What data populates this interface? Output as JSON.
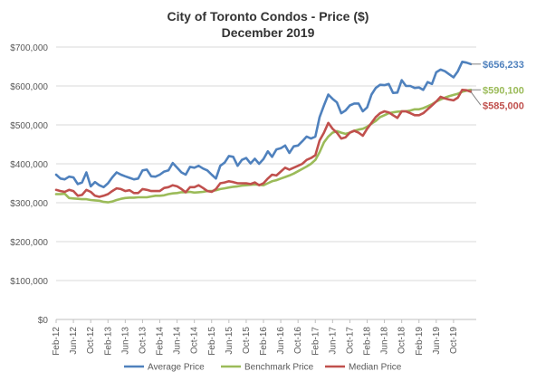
{
  "chart_data": {
    "type": "line",
    "title": "City of Toronto Condos - Price ($)",
    "subtitle": "December 2019",
    "xlabel": "",
    "ylabel": "",
    "ylim": [
      0,
      700000
    ],
    "yticks": [
      0,
      100000,
      200000,
      300000,
      400000,
      500000,
      600000,
      700000
    ],
    "ytick_labels": [
      "$0",
      "$100,000",
      "$200,000",
      "$300,000",
      "$400,000",
      "$500,000",
      "$600,000",
      "$700,000"
    ],
    "grid": "horizontal",
    "legend_position": "bottom",
    "x_start": "Feb-12",
    "x_end": "Dec-19",
    "x_tick_labels": [
      "Feb-12",
      "Jun-12",
      "Oct-12",
      "Feb-13",
      "Jun-13",
      "Oct-13",
      "Feb-14",
      "Jun-14",
      "Oct-14",
      "Feb-15",
      "Jun-15",
      "Oct-15",
      "Feb-16",
      "Jun-16",
      "Oct-16",
      "Feb-17",
      "Jun-17",
      "Oct-17",
      "Feb-18",
      "Jun-18",
      "Oct-18",
      "Feb-19",
      "Jun-19",
      "Oct-19"
    ],
    "series": [
      {
        "name": "Average Price",
        "color": "#4f81bd",
        "end_label": "$656,233",
        "values": [
          372000,
          362000,
          360000,
          367000,
          365000,
          348000,
          352000,
          378000,
          342000,
          353000,
          345000,
          340000,
          350000,
          365000,
          378000,
          372000,
          368000,
          364000,
          360000,
          362000,
          383000,
          385000,
          368000,
          367000,
          372000,
          380000,
          383000,
          402000,
          390000,
          378000,
          372000,
          392000,
          390000,
          395000,
          388000,
          383000,
          372000,
          362000,
          395000,
          403000,
          420000,
          418000,
          395000,
          410000,
          415000,
          401000,
          413000,
          400000,
          412000,
          432000,
          418000,
          437000,
          440000,
          447000,
          428000,
          445000,
          447000,
          458000,
          470000,
          465000,
          470000,
          520000,
          550000,
          578000,
          567000,
          558000,
          530000,
          537000,
          550000,
          555000,
          555000,
          535000,
          545000,
          578000,
          595000,
          603000,
          602000,
          605000,
          582000,
          583000,
          615000,
          600000,
          600000,
          595000,
          596000,
          590000,
          610000,
          605000,
          635000,
          642000,
          638000,
          630000,
          622000,
          638000,
          662000,
          660000,
          656233
        ]
      },
      {
        "name": "Benchmark Price",
        "color": "#9bbb59",
        "end_label": "$590,100",
        "values": [
          322000,
          322000,
          323000,
          312000,
          311000,
          310000,
          309000,
          309000,
          307000,
          306000,
          305000,
          302000,
          301000,
          303000,
          307000,
          310000,
          312000,
          313000,
          313000,
          314000,
          314000,
          314000,
          316000,
          318000,
          318000,
          319000,
          322000,
          324000,
          325000,
          327000,
          327000,
          328000,
          326000,
          327000,
          328000,
          330000,
          330000,
          332000,
          335000,
          337000,
          339000,
          341000,
          342000,
          344000,
          345000,
          346000,
          347000,
          346000,
          345000,
          350000,
          355000,
          358000,
          362000,
          366000,
          370000,
          375000,
          381000,
          387000,
          393000,
          400000,
          410000,
          430000,
          455000,
          470000,
          480000,
          484000,
          480000,
          477000,
          480000,
          485000,
          488000,
          490000,
          495000,
          503000,
          510000,
          520000,
          525000,
          530000,
          532000,
          534000,
          535000,
          535000,
          537000,
          540000,
          540000,
          543000,
          548000,
          553000,
          560000,
          565000,
          570000,
          574000,
          577000,
          580000,
          585000,
          588000,
          590100
        ]
      },
      {
        "name": "Median Price",
        "color": "#c0504d",
        "end_label": "$585,000",
        "values": [
          333000,
          330000,
          328000,
          333000,
          330000,
          318000,
          320000,
          333000,
          328000,
          318000,
          315000,
          318000,
          322000,
          330000,
          337000,
          335000,
          330000,
          332000,
          325000,
          325000,
          335000,
          333000,
          330000,
          330000,
          330000,
          338000,
          340000,
          345000,
          342000,
          335000,
          327000,
          340000,
          340000,
          345000,
          338000,
          330000,
          328000,
          335000,
          350000,
          352000,
          355000,
          353000,
          350000,
          350000,
          350000,
          348000,
          352000,
          345000,
          350000,
          362000,
          372000,
          370000,
          380000,
          390000,
          385000,
          390000,
          395000,
          400000,
          410000,
          415000,
          422000,
          460000,
          480000,
          505000,
          490000,
          480000,
          465000,
          468000,
          480000,
          485000,
          480000,
          472000,
          490000,
          505000,
          520000,
          530000,
          535000,
          532000,
          525000,
          518000,
          535000,
          535000,
          530000,
          525000,
          525000,
          530000,
          540000,
          550000,
          560000,
          572000,
          568000,
          565000,
          563000,
          570000,
          590000,
          589000,
          585000
        ]
      }
    ]
  }
}
